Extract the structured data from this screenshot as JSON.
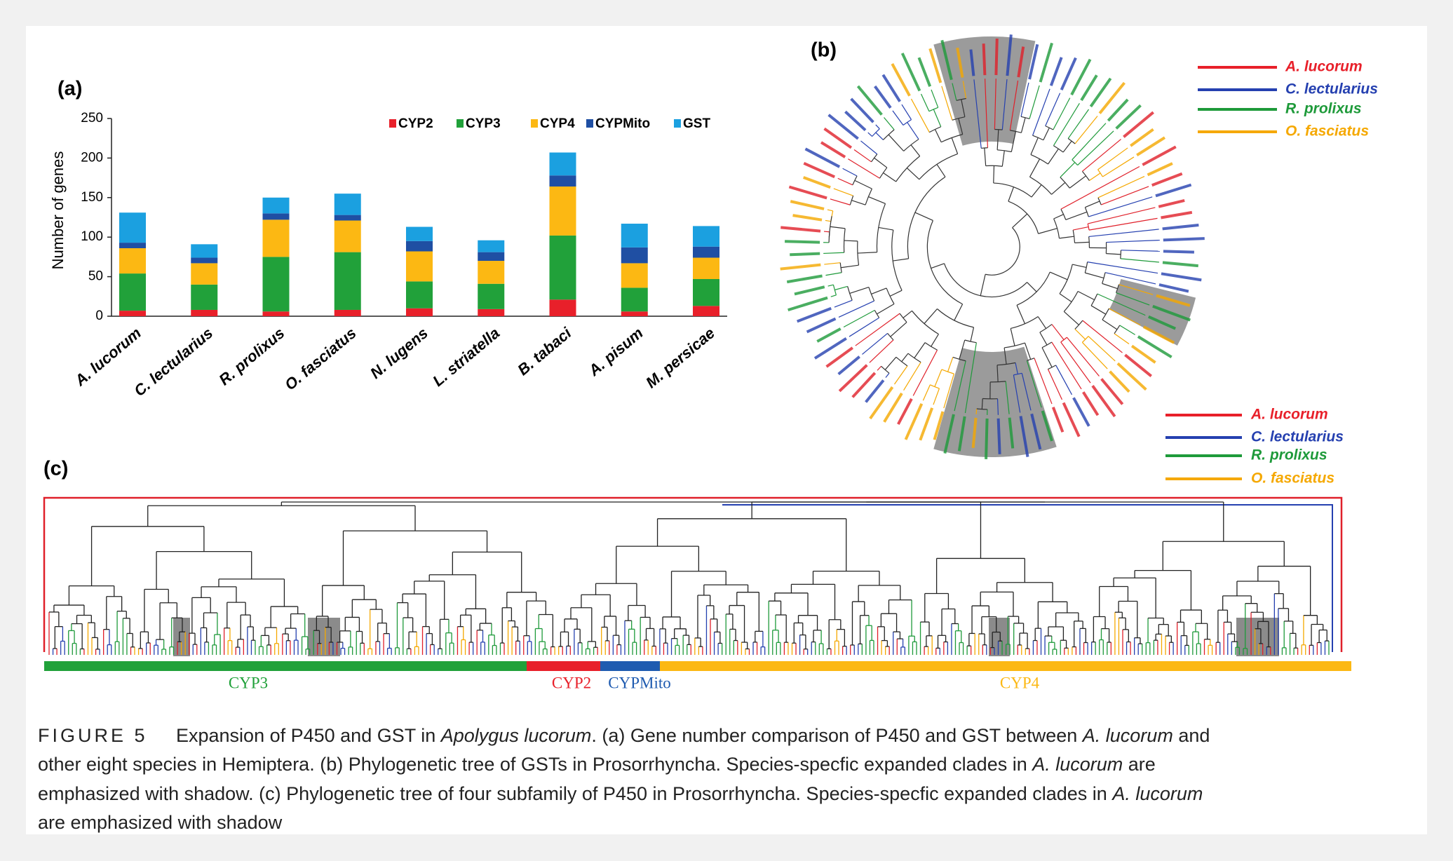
{
  "chart_data": {
    "type": "bar",
    "stacked": true,
    "panel_label": "(a)",
    "y_label": "Number of genes",
    "categories": [
      "A. lucorum",
      "C. lectularius",
      "R. prolixus",
      "O. fasciatus",
      "N. lugens",
      "L. striatella",
      "B. tabaci",
      "A. pisum",
      "M. persicae"
    ],
    "series": [
      {
        "name": "CYP2",
        "color": "#e8202a",
        "values": [
          7,
          8,
          6,
          8,
          10,
          9,
          21,
          6,
          13
        ]
      },
      {
        "name": "CYP3",
        "color": "#21a13a",
        "values": [
          47,
          32,
          69,
          73,
          34,
          32,
          81,
          30,
          34
        ]
      },
      {
        "name": "CYP4",
        "color": "#fcb813",
        "values": [
          32,
          27,
          47,
          40,
          38,
          29,
          62,
          31,
          27
        ]
      },
      {
        "name": "CYPMito",
        "color": "#1f4fa3",
        "values": [
          7,
          7,
          8,
          7,
          13,
          11,
          14,
          20,
          14
        ]
      },
      {
        "name": "GST",
        "color": "#1ba0e0",
        "values": [
          38,
          17,
          20,
          27,
          18,
          15,
          29,
          30,
          26
        ]
      }
    ],
    "ylim": [
      0,
      250
    ],
    "yticks": [
      0,
      50,
      100,
      150,
      200,
      250
    ],
    "grid": false,
    "legend": "top"
  },
  "panel_b": {
    "label": "(b)",
    "legend": [
      {
        "name": "A. lucorum",
        "color": "#e8202a"
      },
      {
        "name": "C. lectularius",
        "color": "#2540b0"
      },
      {
        "name": "R. prolixus",
        "color": "#1e9a3a"
      },
      {
        "name": "O. fasciatus",
        "color": "#f5a800"
      }
    ]
  },
  "panel_c": {
    "label": "(c)",
    "legend": [
      {
        "name": "A. lucorum",
        "color": "#e8202a"
      },
      {
        "name": "C. lectularius",
        "color": "#2540b0"
      },
      {
        "name": "R. prolixus",
        "color": "#1e9a3a"
      },
      {
        "name": "O. fasciatus",
        "color": "#f5a800"
      }
    ],
    "subfamilies": [
      {
        "name": "CYP3",
        "color": "#21a13a"
      },
      {
        "name": "CYP2",
        "color": "#e8202a"
      },
      {
        "name": "CYPMito",
        "color": "#1f5bb0"
      },
      {
        "name": "CYP4",
        "color": "#fcb813"
      }
    ]
  },
  "caption": {
    "label": "FIGURE 5",
    "lines": [
      [
        "Expansion of P450 and GST in ",
        "Apolygus lucorum",
        ". (a) Gene number comparison of P450 and GST between ",
        "A. lucorum",
        " and"
      ],
      [
        "other eight species in Hemiptera. (b) Phylogenetic tree of GSTs in Prosorrhyncha. Species-specfic expanded clades in ",
        "A. lucorum",
        " are"
      ],
      [
        "emphasized with shadow. (c) Phylogenetic tree of four subfamily of P450 in Prosorrhyncha. Species-specfic expanded clades in ",
        "A. lucorum"
      ],
      [
        "are emphasized with shadow"
      ]
    ]
  }
}
